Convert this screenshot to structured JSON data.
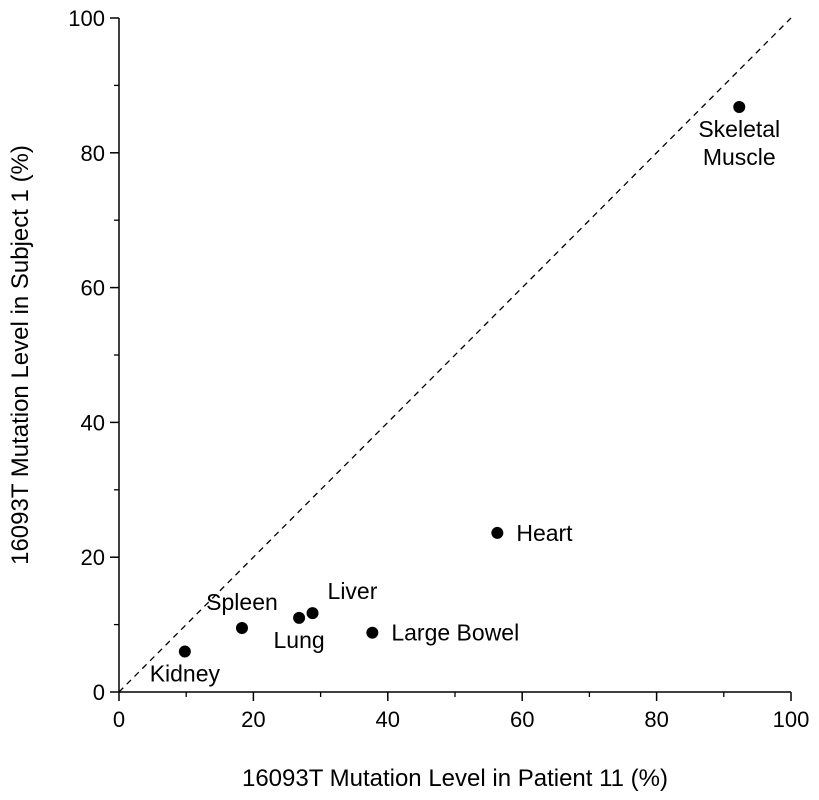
{
  "chart_data": {
    "type": "scatter",
    "title": "",
    "xlabel": "16093T Mutation Level in Patient 11 (%)",
    "ylabel": "16093T Mutation Level in Subject 1 (%)",
    "xlim": [
      0,
      100
    ],
    "ylim": [
      0,
      100
    ],
    "x_ticks": [
      0,
      20,
      40,
      60,
      80,
      100
    ],
    "y_ticks": [
      0,
      20,
      40,
      60,
      80,
      100
    ],
    "x_tick_labels": [
      "0",
      "20",
      "40",
      "60",
      "80",
      "100"
    ],
    "y_tick_labels": [
      "0",
      "20",
      "40",
      "60",
      "80",
      "100"
    ],
    "grid": false,
    "reference_line": {
      "style": "dashed",
      "from": [
        0,
        0
      ],
      "to": [
        100,
        100
      ]
    },
    "marker_color": "#000000",
    "points": [
      {
        "label": "Kidney",
        "label_lines": [
          "Kidney"
        ],
        "x": 9.8,
        "y": 6.0,
        "label_anchor": "below"
      },
      {
        "label": "Spleen",
        "label_lines": [
          "Spleen"
        ],
        "x": 18.3,
        "y": 9.5,
        "label_anchor": "above"
      },
      {
        "label": "Lung",
        "label_lines": [
          "Lung"
        ],
        "x": 26.8,
        "y": 11.0,
        "label_anchor": "below"
      },
      {
        "label": "Liver",
        "label_lines": [
          "Liver"
        ],
        "x": 28.8,
        "y": 11.7,
        "label_anchor": "above-right"
      },
      {
        "label": "Large Bowel",
        "label_lines": [
          "Large Bowel"
        ],
        "x": 37.7,
        "y": 8.8,
        "label_anchor": "right"
      },
      {
        "label": "Heart",
        "label_lines": [
          "Heart"
        ],
        "x": 56.3,
        "y": 23.6,
        "label_anchor": "right"
      },
      {
        "label": "Skeletal Muscle",
        "label_lines": [
          "Skeletal",
          "Muscle"
        ],
        "x": 92.3,
        "y": 86.8,
        "label_anchor": "below"
      }
    ]
  }
}
